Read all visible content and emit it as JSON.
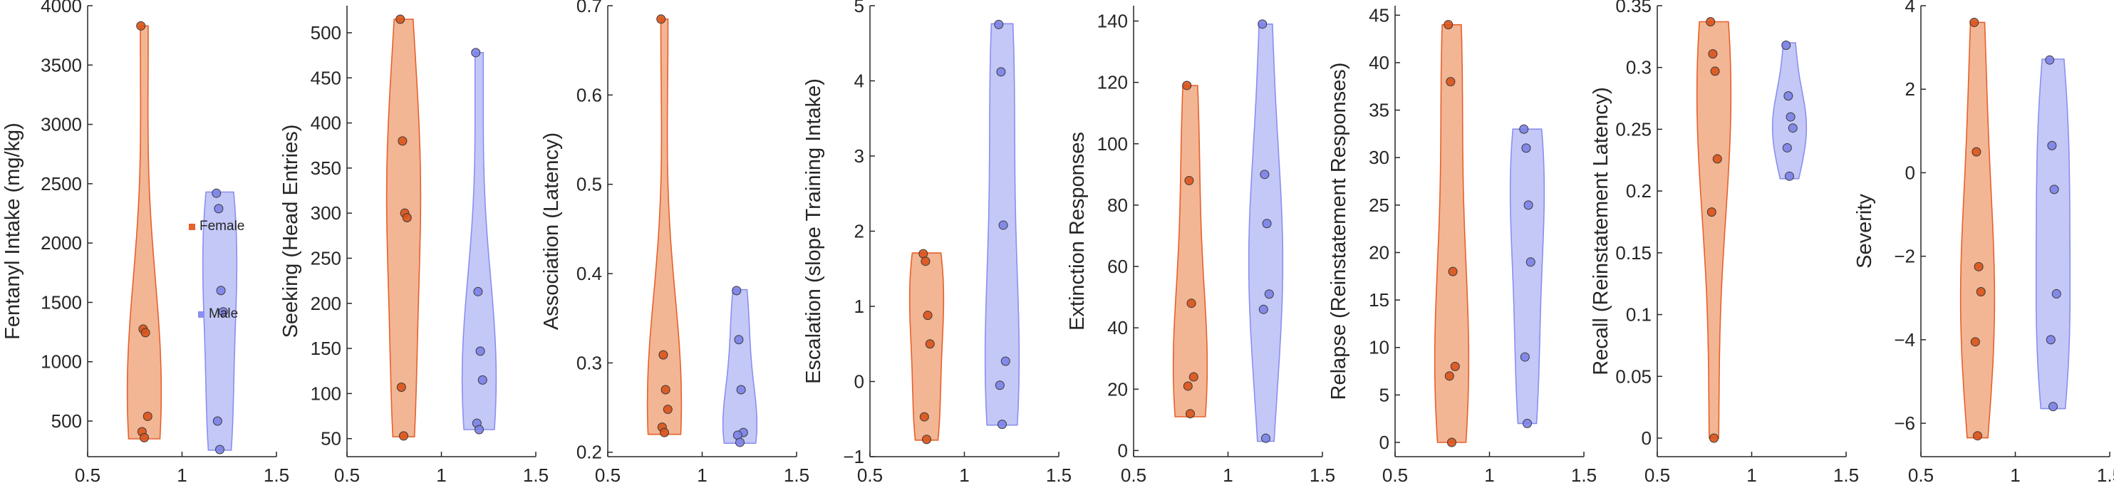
{
  "colors": {
    "female_fill": "#f2b694",
    "female_edge": "#e8602c",
    "female_point": "#d95319",
    "male_fill": "#c4c8f7",
    "male_edge": "#8a8ff0",
    "male_point": "#7c82e6",
    "axis": "#262626"
  },
  "legend": {
    "entries": [
      {
        "name": "Female",
        "color": "#e8602c"
      },
      {
        "name": "Male",
        "color": "#8a8ff0"
      }
    ]
  },
  "chart_data": [
    {
      "type": "violin",
      "ylabel": "Fentanyl Intake (mg/kg)",
      "xlim": [
        0.5,
        1.5
      ],
      "xticks": [
        "0.5",
        "1",
        "1.5"
      ],
      "ylim": [
        200,
        4000
      ],
      "yticks": [
        500,
        1000,
        1500,
        2000,
        2500,
        3000,
        3500,
        4000
      ],
      "groups": [
        {
          "name": "Female",
          "x": 0.8,
          "values": [
            3830,
            1275,
            1245,
            540,
            410,
            360
          ],
          "range": [
            350,
            3830
          ]
        },
        {
          "name": "Male",
          "x": 1.2,
          "values": [
            2420,
            2290,
            1600,
            1420,
            500,
            260
          ],
          "range": [
            255,
            2430
          ]
        }
      ]
    },
    {
      "type": "violin",
      "ylabel": "Seeking (Head Entries)",
      "xlim": [
        0.5,
        1.5
      ],
      "xticks": [
        "0.5",
        "1",
        "1.5"
      ],
      "ylim": [
        30,
        530
      ],
      "yticks": [
        50,
        100,
        150,
        200,
        250,
        300,
        350,
        400,
        450,
        500
      ],
      "groups": [
        {
          "name": "Female",
          "x": 0.8,
          "values": [
            515,
            380,
            300,
            295,
            107,
            53
          ],
          "range": [
            52,
            515
          ]
        },
        {
          "name": "Male",
          "x": 1.2,
          "values": [
            478,
            213,
            147,
            115,
            67,
            60
          ],
          "range": [
            60,
            478
          ]
        }
      ]
    },
    {
      "type": "violin",
      "ylabel": "Association (Latency)",
      "xlim": [
        0.5,
        1.5
      ],
      "xticks": [
        "0.5",
        "1",
        "1.5"
      ],
      "ylim": [
        0.195,
        0.7
      ],
      "yticks": [
        0.2,
        0.3,
        0.4,
        0.5,
        0.6,
        0.7
      ],
      "groups": [
        {
          "name": "Female",
          "x": 0.8,
          "values": [
            0.685,
            0.309,
            0.27,
            0.248,
            0.228,
            0.222
          ],
          "range": [
            0.22,
            0.685
          ]
        },
        {
          "name": "Male",
          "x": 1.2,
          "values": [
            0.381,
            0.326,
            0.27,
            0.222,
            0.219,
            0.211
          ],
          "range": [
            0.21,
            0.382
          ]
        }
      ]
    },
    {
      "type": "violin",
      "ylabel": "Escalation (slope Training Intake)",
      "xlim": [
        0.5,
        1.5
      ],
      "xticks": [
        "0.5",
        "1",
        "1.5"
      ],
      "ylim": [
        -1,
        5
      ],
      "yticks": [
        -1,
        0,
        1,
        2,
        3,
        4,
        5
      ],
      "groups": [
        {
          "name": "Female",
          "x": 0.8,
          "values": [
            1.7,
            1.6,
            0.88,
            0.5,
            -0.47,
            -0.77
          ],
          "range": [
            -0.78,
            1.71
          ]
        },
        {
          "name": "Male",
          "x": 1.2,
          "values": [
            4.75,
            4.12,
            2.08,
            0.27,
            -0.05,
            -0.57
          ],
          "range": [
            -0.58,
            4.76
          ]
        }
      ]
    },
    {
      "type": "violin",
      "ylabel": "Extinction Responses",
      "xlim": [
        0.5,
        1.5
      ],
      "xticks": [
        "0.5",
        "1",
        "1.5"
      ],
      "ylim": [
        -2,
        145
      ],
      "yticks": [
        0,
        20,
        40,
        60,
        80,
        100,
        120,
        140
      ],
      "groups": [
        {
          "name": "Female",
          "x": 0.8,
          "values": [
            119,
            88,
            48,
            24,
            21,
            12
          ],
          "range": [
            11,
            119
          ]
        },
        {
          "name": "Male",
          "x": 1.2,
          "values": [
            139,
            90,
            74,
            51,
            46,
            4
          ],
          "range": [
            3,
            139
          ]
        }
      ]
    },
    {
      "type": "violin",
      "ylabel": "Relapse (Reinstatement Responses)",
      "xlim": [
        0.5,
        1.5
      ],
      "xticks": [
        "0.5",
        "1",
        "1.5"
      ],
      "ylim": [
        -1.5,
        46
      ],
      "yticks": [
        0,
        5,
        10,
        15,
        20,
        25,
        30,
        35,
        40,
        45
      ],
      "groups": [
        {
          "name": "Female",
          "x": 0.8,
          "values": [
            44,
            38,
            18,
            8,
            7,
            0
          ],
          "range": [
            0,
            44
          ]
        },
        {
          "name": "Male",
          "x": 1.2,
          "values": [
            33,
            31,
            25,
            19,
            9,
            2
          ],
          "range": [
            2,
            33
          ]
        }
      ]
    },
    {
      "type": "violin",
      "ylabel": "Recall (Reinstatement Latency)",
      "xlim": [
        0.5,
        1.5
      ],
      "xticks": [
        "0.5",
        "1",
        "1.5"
      ],
      "ylim": [
        -0.015,
        0.35
      ],
      "yticks": [
        0,
        0.05,
        0.1,
        0.15,
        0.2,
        0.25,
        0.3,
        0.35
      ],
      "groups": [
        {
          "name": "Female",
          "x": 0.8,
          "values": [
            0.337,
            0.311,
            0.297,
            0.226,
            0.183,
            0
          ],
          "range": [
            0,
            0.337
          ]
        },
        {
          "name": "Male",
          "x": 1.2,
          "values": [
            0.318,
            0.277,
            0.26,
            0.251,
            0.235,
            0.212
          ],
          "range": [
            0.21,
            0.32
          ]
        }
      ]
    },
    {
      "type": "violin",
      "ylabel": "Severity",
      "xlim": [
        0.5,
        1.5
      ],
      "xticks": [
        "0.5",
        "1",
        "1.5"
      ],
      "ylim": [
        -6.8,
        4
      ],
      "yticks": [
        -6,
        -4,
        -2,
        0,
        2,
        4
      ],
      "groups": [
        {
          "name": "Female",
          "x": 0.8,
          "values": [
            3.6,
            0.5,
            -2.25,
            -2.85,
            -4.05,
            -6.3
          ],
          "range": [
            -6.35,
            3.6
          ]
        },
        {
          "name": "Male",
          "x": 1.2,
          "values": [
            2.7,
            0.65,
            -0.4,
            -2.9,
            -4.0,
            -5.6
          ],
          "range": [
            -5.65,
            2.72
          ]
        }
      ]
    }
  ]
}
